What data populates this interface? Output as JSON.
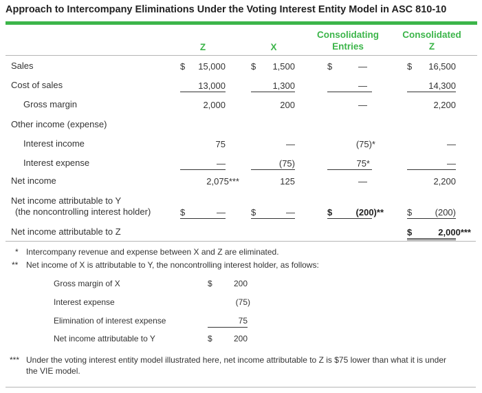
{
  "title": "Approach to Intercompany Eliminations Under the Voting Interest Entity Model in ASC 810-10",
  "headers": {
    "z": "Z",
    "x": "X",
    "ce1": "Consolidating",
    "ce2": "Entries",
    "cz1": "Consolidated",
    "cz2": "Z"
  },
  "rows": {
    "sales": {
      "label": "Sales",
      "z": "15,000",
      "x": "1,500",
      "ce": "—",
      "cz": "16,500",
      "dollar": "$"
    },
    "cos": {
      "label": "Cost of sales",
      "z": "13,000",
      "x": "1,300",
      "ce": "—",
      "cz": "14,300"
    },
    "gm": {
      "label": "Gross margin",
      "z": "2,000",
      "x": "200",
      "ce": "—",
      "cz": "2,200"
    },
    "oie": {
      "label": "Other income (expense)"
    },
    "ii": {
      "label": "Interest income",
      "z": "75",
      "x": "—",
      "ce": "(75)*",
      "cz": "—"
    },
    "ie": {
      "label": "Interest expense",
      "z": "—",
      "x": "(75)",
      "ce": "75*",
      "cz": "—"
    },
    "ni": {
      "label": "Net income",
      "z": "2,075***",
      "x": "125",
      "ce": "—",
      "cz": "2,200"
    },
    "nci": {
      "label1": "Net income attributable to Y",
      "label2": "(the noncontrolling interest holder)",
      "z": "—",
      "x": "—",
      "ce": "(200)**",
      "cz": "(200)",
      "dollar": "$"
    },
    "niz": {
      "label": "Net income attributable to Z",
      "cz": "2,000***",
      "dollar": "$"
    }
  },
  "footnotes": {
    "f1_mark": "*",
    "f1": "Intercompany revenue and expense between X and Z are eliminated.",
    "f2_mark": "**",
    "f2": "Net income of X is attributable to Y, the noncontrolling interest holder, as follows:",
    "sub": [
      {
        "label": "Gross margin of X",
        "dollar": "$",
        "value": "200"
      },
      {
        "label": "Interest expense",
        "value": "(75)"
      },
      {
        "label": "Elimination of interest expense",
        "value": "75"
      },
      {
        "label": "Net income attributable to Y",
        "dollar": "$",
        "value": "200"
      }
    ],
    "f3_mark": "***",
    "f3a": "Under the voting interest entity model illustrated here, net income attributable to Z is $75 lower than what it is under",
    "f3b": "the VIE model."
  }
}
